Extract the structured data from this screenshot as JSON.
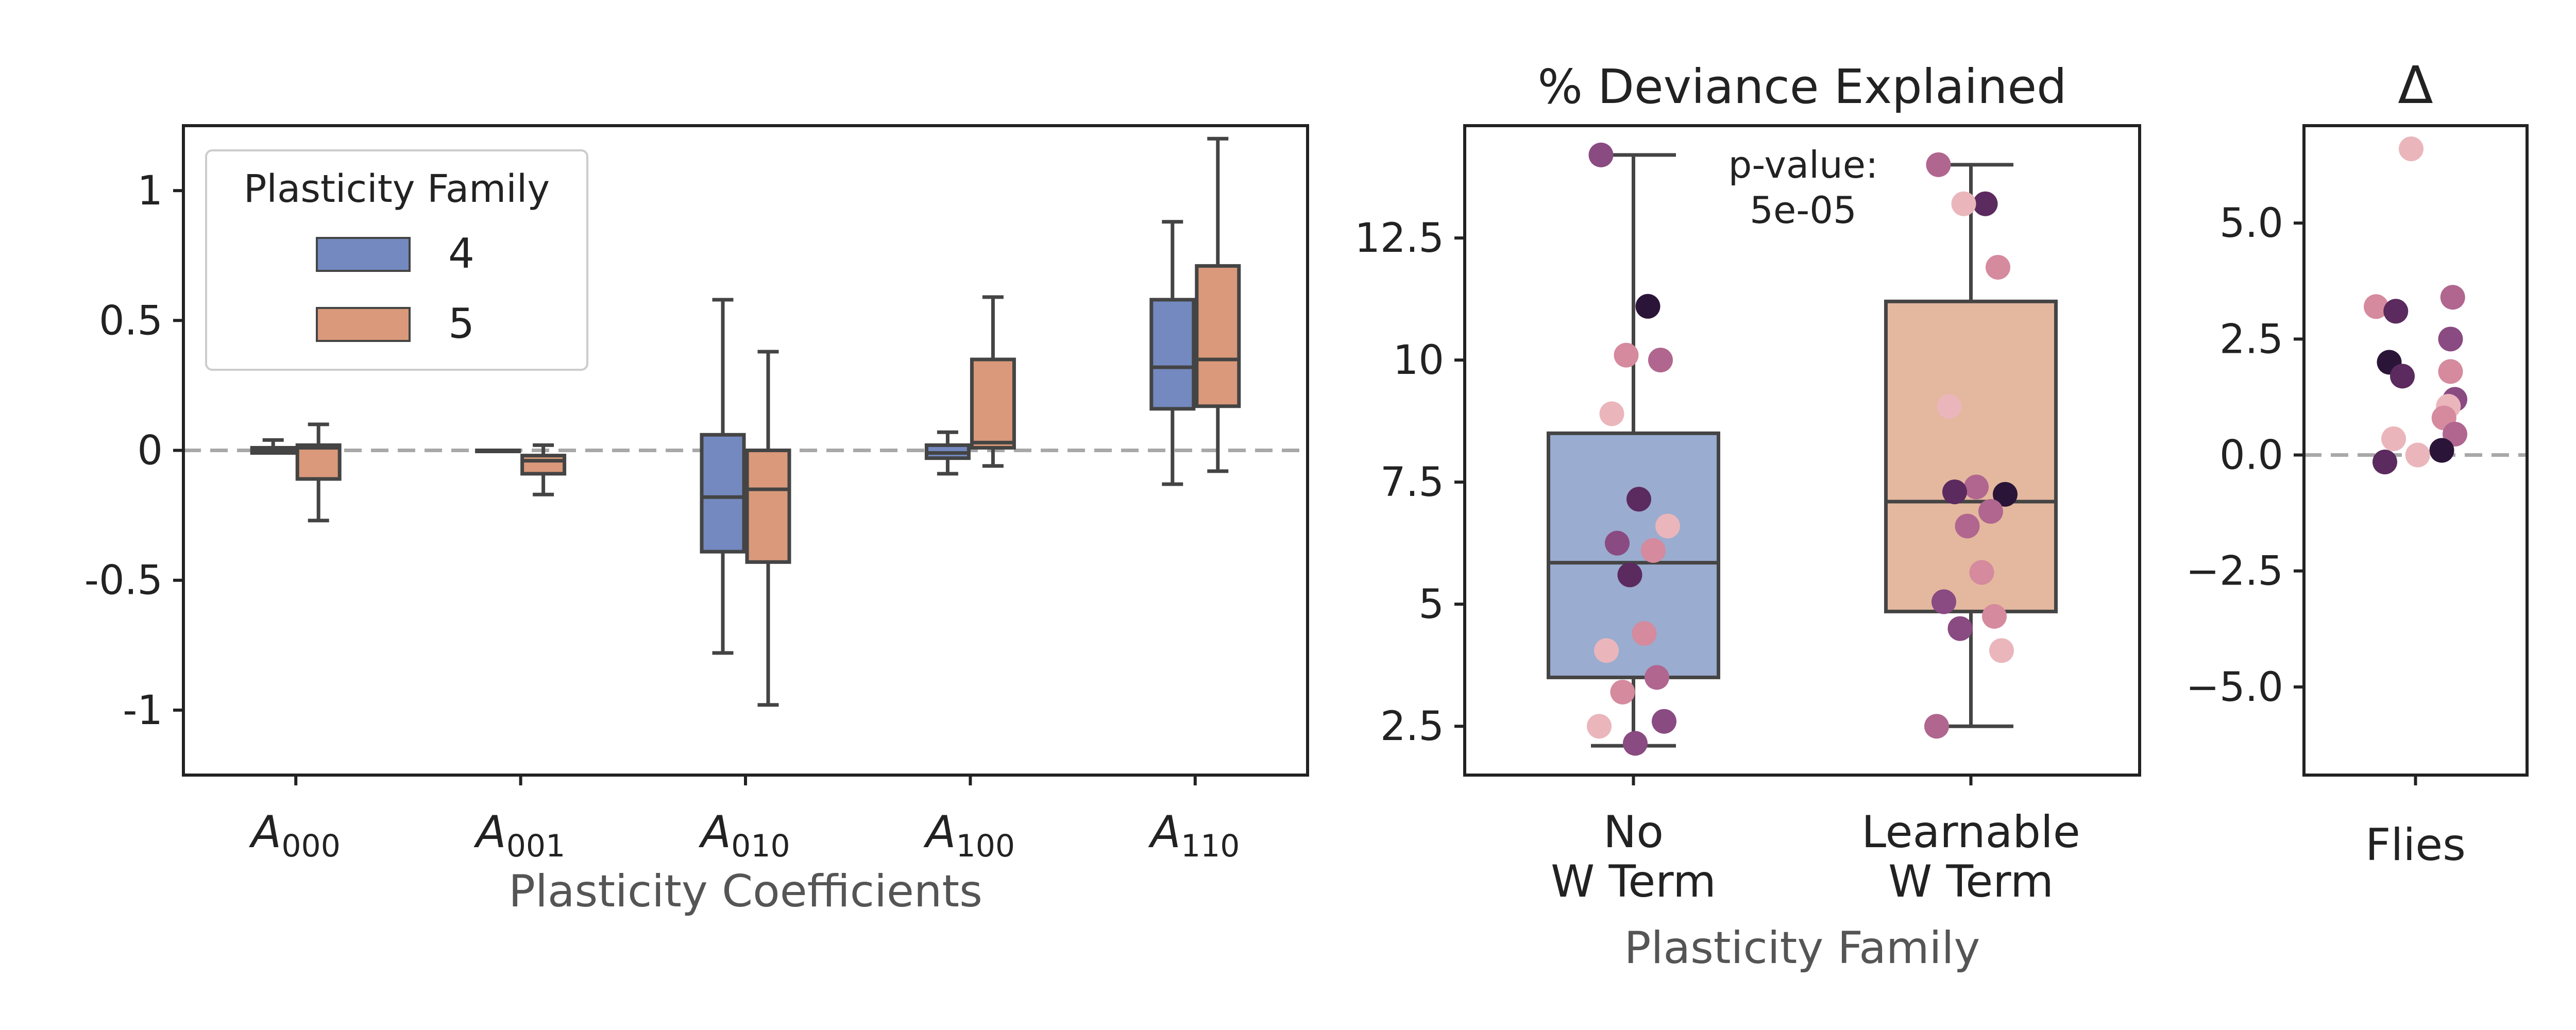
{
  "colors": {
    "family4": "#7389bf",
    "family5": "#d9997a",
    "family4_light": "#9aaccf",
    "family5_light": "#e4b89e",
    "box_line": "#444444",
    "zero_line": "#a8a8a8",
    "fly_palette": [
      "#2a1538",
      "#5b2a5e",
      "#8a4a82",
      "#b0668f",
      "#d58a9e",
      "#eab6bb"
    ]
  },
  "chart_data": [
    {
      "type": "box",
      "title": "",
      "xlabel": "Plasticity Coefficients",
      "ylabel": "",
      "ylim": [
        -1.25,
        1.25
      ],
      "yticks": [
        {
          "value": 1,
          "label": "1"
        },
        {
          "value": 0.5,
          "label": "0.5"
        },
        {
          "value": 0,
          "label": "0"
        },
        {
          "value": -0.5,
          "label": "-0.5"
        },
        {
          "value": -1,
          "label": "-1"
        }
      ],
      "reference_line": 0,
      "categories": [
        {
          "base": "A",
          "sub": "000"
        },
        {
          "base": "A",
          "sub": "001"
        },
        {
          "base": "A",
          "sub": "010"
        },
        {
          "base": "A",
          "sub": "100"
        },
        {
          "base": "A",
          "sub": "110"
        }
      ],
      "legend": {
        "title": "Plasticity Family",
        "position": "top-left",
        "entries": [
          "4",
          "5"
        ]
      },
      "series": [
        {
          "name": "4",
          "boxes": [
            {
              "whislo": -0.01,
              "q1": -0.01,
              "med": 0.0,
              "q3": 0.01,
              "whishi": 0.04
            },
            {
              "whislo": 0.0,
              "q1": 0.0,
              "med": 0.0,
              "q3": 0.0,
              "whishi": 0.0
            },
            {
              "whislo": -0.78,
              "q1": -0.39,
              "med": -0.18,
              "q3": 0.06,
              "whishi": 0.58
            },
            {
              "whislo": -0.09,
              "q1": -0.03,
              "med": -0.01,
              "q3": 0.02,
              "whishi": 0.07
            },
            {
              "whislo": -0.13,
              "q1": 0.16,
              "med": 0.32,
              "q3": 0.58,
              "whishi": 0.88
            }
          ]
        },
        {
          "name": "5",
          "boxes": [
            {
              "whislo": -0.27,
              "q1": -0.11,
              "med": 0.01,
              "q3": 0.02,
              "whishi": 0.1
            },
            {
              "whislo": -0.17,
              "q1": -0.09,
              "med": -0.04,
              "q3": -0.02,
              "whishi": 0.02
            },
            {
              "whislo": -0.98,
              "q1": -0.43,
              "med": -0.15,
              "q3": 0.0,
              "whishi": 0.38
            },
            {
              "whislo": -0.06,
              "q1": 0.01,
              "med": 0.03,
              "q3": 0.35,
              "whishi": 0.59
            },
            {
              "whislo": -0.08,
              "q1": 0.17,
              "med": 0.35,
              "q3": 0.71,
              "whishi": 1.2
            }
          ]
        }
      ]
    },
    {
      "type": "box",
      "title": "% Deviance Explained",
      "xlabel": "Plasticity Family",
      "ylabel": "",
      "ylim": [
        1.5,
        14.8
      ],
      "yticks": [
        {
          "value": 12.5,
          "label": "12.5"
        },
        {
          "value": 10,
          "label": "10"
        },
        {
          "value": 7.5,
          "label": "7.5"
        },
        {
          "value": 5,
          "label": "5"
        },
        {
          "value": 2.5,
          "label": "2.5"
        }
      ],
      "categories": [
        {
          "lines": [
            "No",
            "W Term"
          ]
        },
        {
          "lines": [
            "Learnable",
            "W Term"
          ]
        }
      ],
      "annotation": {
        "lines": [
          "p-value:",
          "5e-05"
        ]
      },
      "boxes": [
        {
          "whislo": 2.1,
          "q1": 3.5,
          "med": 5.85,
          "q3": 8.5,
          "whishi": 14.2
        },
        {
          "whislo": 2.5,
          "q1": 4.85,
          "med": 7.1,
          "q3": 11.2,
          "whishi": 14.0
        }
      ],
      "points": [
        [
          {
            "y": 14.2,
            "c": 2
          },
          {
            "y": 11.1,
            "c": 0
          },
          {
            "y": 10.1,
            "c": 4
          },
          {
            "y": 10.0,
            "c": 3
          },
          {
            "y": 8.9,
            "c": 5
          },
          {
            "y": 7.15,
            "c": 1
          },
          {
            "y": 6.6,
            "c": 5
          },
          {
            "y": 6.25,
            "c": 2
          },
          {
            "y": 6.1,
            "c": 4
          },
          {
            "y": 5.6,
            "c": 1
          },
          {
            "y": 4.4,
            "c": 4
          },
          {
            "y": 4.05,
            "c": 5
          },
          {
            "y": 3.5,
            "c": 3
          },
          {
            "y": 3.2,
            "c": 4
          },
          {
            "y": 2.6,
            "c": 2
          },
          {
            "y": 2.5,
            "c": 5
          },
          {
            "y": 2.15,
            "c": 2
          }
        ],
        [
          {
            "y": 14.0,
            "c": 3
          },
          {
            "y": 13.2,
            "c": 1
          },
          {
            "y": 13.2,
            "c": 5
          },
          {
            "y": 11.9,
            "c": 4
          },
          {
            "y": 9.05,
            "c": 5
          },
          {
            "y": 7.4,
            "c": 3
          },
          {
            "y": 7.25,
            "c": 0
          },
          {
            "y": 7.3,
            "c": 1
          },
          {
            "y": 6.9,
            "c": 3
          },
          {
            "y": 6.6,
            "c": 3
          },
          {
            "y": 5.65,
            "c": 4
          },
          {
            "y": 5.05,
            "c": 2
          },
          {
            "y": 4.75,
            "c": 4
          },
          {
            "y": 4.5,
            "c": 2
          },
          {
            "y": 4.05,
            "c": 5
          },
          {
            "y": 2.5,
            "c": 3
          }
        ]
      ]
    },
    {
      "type": "strip",
      "title": "Δ",
      "xlabel": "",
      "ylabel": "",
      "ylim": [
        -6.9,
        7.1
      ],
      "yticks": [
        {
          "value": 5,
          "label": "5.0"
        },
        {
          "value": 2.5,
          "label": "2.5"
        },
        {
          "value": 0,
          "label": "0.0"
        },
        {
          "value": -2.5,
          "label": "−2.5"
        },
        {
          "value": -5,
          "label": "−5.0"
        }
      ],
      "reference_line": 0,
      "categories": [
        "Flies"
      ],
      "points": [
        {
          "y": 6.6,
          "c": 5
        },
        {
          "y": 3.4,
          "c": 3
        },
        {
          "y": 3.2,
          "c": 4
        },
        {
          "y": 3.1,
          "c": 1
        },
        {
          "y": 2.5,
          "c": 2
        },
        {
          "y": 2.0,
          "c": 0
        },
        {
          "y": 1.8,
          "c": 4
        },
        {
          "y": 1.7,
          "c": 1
        },
        {
          "y": 1.2,
          "c": 2
        },
        {
          "y": 1.05,
          "c": 5
        },
        {
          "y": 0.8,
          "c": 4
        },
        {
          "y": 0.45,
          "c": 3
        },
        {
          "y": 0.35,
          "c": 5
        },
        {
          "y": 0.1,
          "c": 0
        },
        {
          "y": 0.0,
          "c": 5
        },
        {
          "y": -0.15,
          "c": 1
        }
      ]
    }
  ]
}
